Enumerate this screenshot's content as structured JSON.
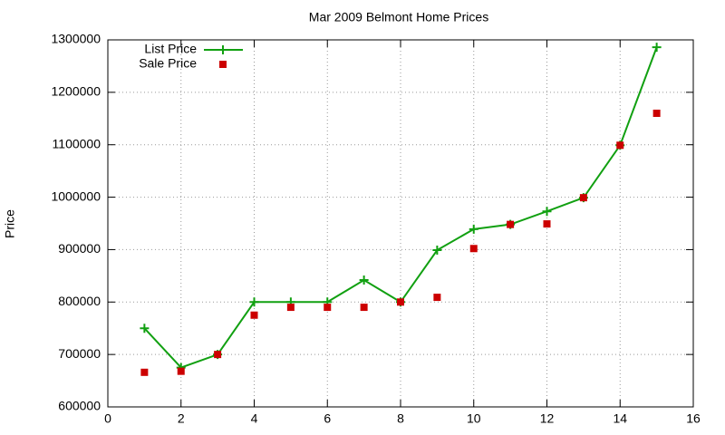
{
  "chart_data": {
    "type": "line",
    "title": "Mar 2009 Belmont Home Prices",
    "ylabel": "Price",
    "x": [
      1,
      2,
      3,
      4,
      5,
      6,
      7,
      8,
      9,
      10,
      11,
      12,
      13,
      14,
      15
    ],
    "series": [
      {
        "name": "List Price",
        "color": "#11a011",
        "marker": "plus",
        "line": true,
        "values": [
          750000,
          675000,
          700000,
          800000,
          800000,
          800000,
          842000,
          800000,
          899000,
          939000,
          948000,
          973000,
          999000,
          1099000,
          1286000
        ]
      },
      {
        "name": "Sale Price",
        "color": "#cc0000",
        "marker": "square",
        "line": false,
        "values": [
          666000,
          668000,
          700000,
          775000,
          790000,
          790000,
          790000,
          800000,
          809000,
          902000,
          948000,
          949000,
          999000,
          1099000,
          1160000
        ]
      }
    ],
    "xlim": [
      0,
      16
    ],
    "xticks": [
      0,
      2,
      4,
      6,
      8,
      10,
      12,
      14,
      16
    ],
    "ylim": [
      600000,
      1300000
    ],
    "yticks": [
      600000,
      700000,
      800000,
      900000,
      1000000,
      1100000,
      1200000,
      1300000
    ],
    "grid": true,
    "legend": "upper left"
  }
}
